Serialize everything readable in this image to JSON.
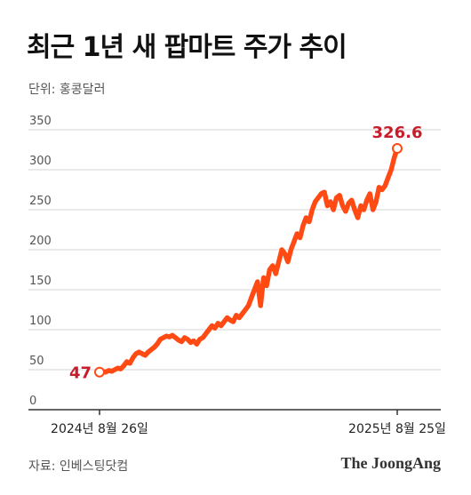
{
  "title": "최근 1년 새 팝마트 주가 추이",
  "unit_label": "단위: 홍콩달러",
  "source": "자료: 인베스팅닷컴",
  "publisher_logo": "The JoongAng",
  "colors": {
    "line": "#ff4a14",
    "label": "#c81e2c",
    "grid": "#d4d4d4",
    "axis": "#333333",
    "tick": "#555555"
  },
  "chart_data": {
    "type": "line",
    "title": "최근 1년 새 팝마트 주가 추이",
    "ylabel": "단위: 홍콩달러",
    "xlabel": "",
    "ylim": [
      0,
      350
    ],
    "yticks": [
      0,
      50,
      100,
      150,
      200,
      250,
      300,
      350
    ],
    "x_tick_labels": [
      "2024년 8월 26일",
      "2025년 8월 25일"
    ],
    "grid": true,
    "series": [
      {
        "values": [
          47,
          48,
          47,
          49,
          48,
          50,
          52,
          51,
          55,
          60,
          58,
          65,
          70,
          72,
          70,
          68,
          72,
          75,
          78,
          82,
          88,
          90,
          92,
          91,
          93,
          90,
          87,
          85,
          90,
          88,
          84,
          86,
          82,
          88,
          90,
          95,
          100,
          105,
          102,
          108,
          105,
          110,
          115,
          112,
          110,
          118,
          115,
          120,
          125,
          130,
          140,
          150,
          160,
          130,
          165,
          155,
          175,
          180,
          170,
          185,
          200,
          195,
          185,
          200,
          210,
          220,
          215,
          230,
          240,
          235,
          250,
          260,
          265,
          270,
          272,
          255,
          260,
          250,
          265,
          268,
          255,
          248,
          258,
          262,
          250,
          240,
          255,
          250,
          262,
          270,
          250,
          260,
          278,
          275,
          280,
          290,
          300,
          315,
          326.6
        ]
      }
    ],
    "annotations": [
      {
        "text": "47",
        "point": "start"
      },
      {
        "text": "326.6",
        "point": "end"
      }
    ]
  }
}
